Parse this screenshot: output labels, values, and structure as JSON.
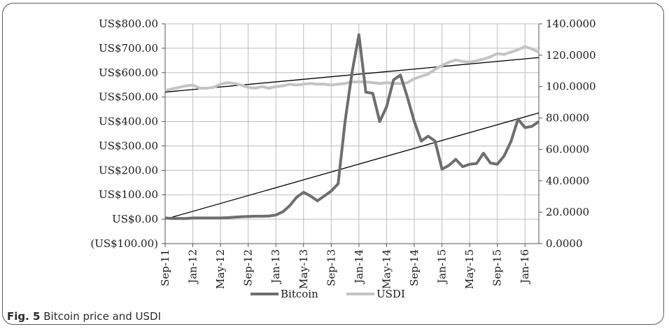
{
  "caption": {
    "label": "Fig. 5",
    "text": "Bitcoin price and USDI"
  },
  "chart_data": {
    "type": "line",
    "title": "",
    "xlabel": "",
    "ylabel": "",
    "y2label": "",
    "grid": true,
    "legend_position": "bottom",
    "x": [
      "Sep-11",
      "Oct-11",
      "Nov-11",
      "Dec-11",
      "Jan-12",
      "Feb-12",
      "Mar-12",
      "Apr-12",
      "May-12",
      "Jun-12",
      "Jul-12",
      "Aug-12",
      "Sep-12",
      "Oct-12",
      "Nov-12",
      "Dec-12",
      "Jan-13",
      "Feb-13",
      "Mar-13",
      "Apr-13",
      "May-13",
      "Jun-13",
      "Jul-13",
      "Aug-13",
      "Sep-13",
      "Oct-13",
      "Nov-13",
      "Dec-13",
      "Jan-14",
      "Feb-14",
      "Mar-14",
      "Apr-14",
      "May-14",
      "Jun-14",
      "Jul-14",
      "Aug-14",
      "Sep-14",
      "Oct-14",
      "Nov-14",
      "Dec-14",
      "Jan-15",
      "Feb-15",
      "Mar-15",
      "Apr-15",
      "May-15",
      "Jun-15",
      "Jul-15",
      "Aug-15",
      "Sep-15",
      "Oct-15",
      "Nov-15",
      "Dec-15",
      "Jan-16",
      "Feb-16",
      "Mar-16"
    ],
    "x_tick_labels": [
      "Sep-11",
      "Jan-12",
      "May-12",
      "Sep-12",
      "Jan-13",
      "May-13",
      "Sep-13",
      "Jan-14",
      "May-14",
      "Sep-14",
      "Jan-15",
      "May-15",
      "Sep-15",
      "Jan-16"
    ],
    "y_left": {
      "ylim": [
        -100,
        800
      ],
      "tick_labels": [
        "US$800.00",
        "US$700.00",
        "US$600.00",
        "US$500.00",
        "US$400.00",
        "US$300.00",
        "US$200.00",
        "US$100.00",
        "US$0.00",
        "(US$100.00)"
      ]
    },
    "y_right": {
      "ylim": [
        0,
        140
      ],
      "tick_labels": [
        "140.0000",
        "120.0000",
        "100.0000",
        "80.0000",
        "60.0000",
        "40.0000",
        "20.0000",
        "0.0000"
      ]
    },
    "series": [
      {
        "name": "Bitcoin",
        "axis": "left",
        "color": "#6e6e6e",
        "values": [
          5,
          3,
          3,
          3,
          5,
          5,
          5,
          5,
          5,
          6,
          8,
          10,
          11,
          12,
          12,
          13,
          17,
          30,
          55,
          90,
          110,
          95,
          75,
          95,
          115,
          145,
          400,
          600,
          755,
          520,
          515,
          400,
          460,
          570,
          590,
          500,
          400,
          320,
          340,
          320,
          205,
          220,
          245,
          215,
          225,
          228,
          270,
          230,
          225,
          260,
          320,
          410,
          375,
          380,
          400
        ]
      },
      {
        "name": "USDI",
        "axis": "right",
        "color": "#c4c4c4",
        "values": [
          97.5,
          98.5,
          99.5,
          100.5,
          101.0,
          99.0,
          99.0,
          99.5,
          101.5,
          102.5,
          102.0,
          101.0,
          99.5,
          99.0,
          100.0,
          99.0,
          100.0,
          100.5,
          101.5,
          101.0,
          101.5,
          102.0,
          101.5,
          101.5,
          101.0,
          101.5,
          102.0,
          103.0,
          103.0,
          103.0,
          102.5,
          102.0,
          102.5,
          102.0,
          102.0,
          102.5,
          105.0,
          106.5,
          108.0,
          111.0,
          113.5,
          115.5,
          117.0,
          116.0,
          115.5,
          116.5,
          117.5,
          119.0,
          121.0,
          120.5,
          122.0,
          123.5,
          125.5,
          124.0,
          122.0
        ]
      }
    ],
    "trendlines": [
      {
        "of": "Bitcoin",
        "axis": "left",
        "color": "#000000",
        "from": 0,
        "to": 435
      },
      {
        "of": "USDI",
        "axis": "right",
        "color": "#000000",
        "from": 96.5,
        "to": 118.5
      }
    ]
  }
}
